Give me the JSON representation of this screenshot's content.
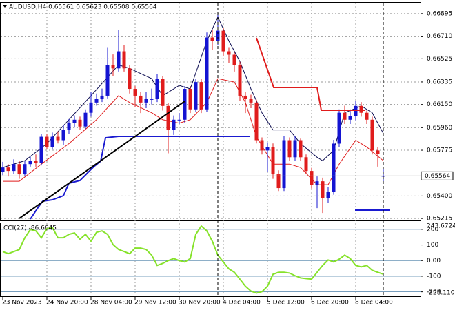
{
  "chart_data": [
    {
      "type": "candlestick",
      "title": "AUDUSD,H4  0.65561 0.65623 0.65508 0.65564",
      "categories": [
        "23 Nov 2023",
        null,
        null,
        null,
        null,
        null,
        null,
        null,
        "24 Nov 20:00",
        null,
        null,
        null,
        null,
        null,
        null,
        null,
        "28 Nov 04:00",
        null,
        null,
        null,
        null,
        null,
        null,
        null,
        "29 Nov 12:00",
        null,
        null,
        null,
        null,
        null,
        null,
        null,
        "30 Nov 20:00",
        null,
        null,
        null,
        null,
        null,
        null,
        null,
        "4 Dec 04:00",
        null,
        null,
        null,
        null,
        null,
        null,
        null,
        "5 Dec 12:00",
        null,
        null,
        null,
        null,
        null,
        null,
        null,
        "6 Dec 20:00",
        null,
        null,
        null,
        null,
        null,
        null,
        null,
        "8 Dec 04:00",
        null,
        null,
        null,
        null,
        null
      ],
      "open": [
        0.656,
        0.65633,
        0.65605,
        0.65661,
        0.65577,
        0.65661,
        0.65689,
        0.65672,
        0.65885,
        0.65801,
        0.65885,
        0.65857,
        0.65941,
        0.65997,
        0.66025,
        0.65969,
        0.66082,
        0.66166,
        0.66194,
        0.66222,
        0.66474,
        0.66446,
        0.66586,
        0.66446,
        0.66278,
        0.66222,
        0.66166,
        0.66194,
        0.66194,
        0.66362,
        0.66138,
        0.65941,
        0.66025,
        0.66025,
        0.66278,
        0.6611,
        0.66334,
        0.6611,
        0.66699,
        0.66671,
        0.66755,
        0.66586,
        0.66558,
        0.66474,
        0.66222,
        0.66194,
        0.66166,
        0.65857,
        0.65773,
        0.65801,
        0.65577,
        0.65464,
        0.65857,
        0.65717,
        0.65857,
        0.65717,
        0.65605,
        0.65492,
        0.6552,
        0.6538,
        0.65436,
        0.65829,
        0.66082,
        0.66025,
        0.66053,
        0.66138,
        0.66082,
        0.66025,
        0.65773,
        0.65561
      ],
      "high": [
        0.6568,
        0.6566,
        0.657,
        0.6569,
        0.6569,
        0.6572,
        0.6574,
        0.6591,
        0.6591,
        0.6592,
        0.6593,
        0.6598,
        0.6603,
        0.6606,
        0.6605,
        0.6611,
        0.6625,
        0.6624,
        0.6628,
        0.6662,
        0.6656,
        0.6676,
        0.6664,
        0.6647,
        0.663,
        0.6625,
        0.6625,
        0.6628,
        0.664,
        0.6638,
        0.6616,
        0.6606,
        0.6608,
        0.663,
        0.663,
        0.6636,
        0.6636,
        0.6674,
        0.6676,
        0.669,
        0.6678,
        0.6662,
        0.6658,
        0.665,
        0.6625,
        0.6623,
        0.6619,
        0.6588,
        0.6584,
        0.6583,
        0.6561,
        0.6589,
        0.6588,
        0.6589,
        0.6587,
        0.6574,
        0.6563,
        0.6556,
        0.6555,
        0.6547,
        0.6586,
        0.6611,
        0.6614,
        0.6611,
        0.6618,
        0.6617,
        0.661,
        0.6605,
        0.658,
        0.65623
      ],
      "low": [
        0.6557,
        0.6556,
        0.6558,
        0.6554,
        0.6556,
        0.6564,
        0.6564,
        0.6565,
        0.6578,
        0.6578,
        0.6583,
        0.6582,
        0.6591,
        0.6596,
        0.6594,
        0.6595,
        0.6605,
        0.6614,
        0.6617,
        0.662,
        0.6638,
        0.6642,
        0.6642,
        0.6624,
        0.6613,
        0.6608,
        0.6612,
        0.6615,
        0.6617,
        0.661,
        0.6575,
        0.659,
        0.6599,
        0.66,
        0.6608,
        0.6609,
        0.6608,
        0.6609,
        0.666,
        0.6664,
        0.6655,
        0.6649,
        0.6642,
        0.6618,
        0.6608,
        0.6612,
        0.6583,
        0.6574,
        0.656,
        0.6554,
        0.6544,
        0.6544,
        0.6569,
        0.6569,
        0.6569,
        0.6558,
        0.6546,
        0.653,
        0.6526,
        0.6534,
        0.6541,
        0.658,
        0.6599,
        0.6599,
        0.6602,
        0.6605,
        0.6599,
        0.6574,
        0.6564,
        0.65508
      ],
      "close": [
        0.65633,
        0.65605,
        0.65661,
        0.65577,
        0.65661,
        0.65689,
        0.65672,
        0.65885,
        0.65801,
        0.65885,
        0.65857,
        0.65941,
        0.65997,
        0.66025,
        0.65969,
        0.66082,
        0.66166,
        0.66194,
        0.66222,
        0.66474,
        0.66446,
        0.66586,
        0.66446,
        0.66278,
        0.66222,
        0.66166,
        0.66194,
        0.66194,
        0.66362,
        0.66138,
        0.65941,
        0.66025,
        0.66025,
        0.66278,
        0.6611,
        0.66334,
        0.6611,
        0.66699,
        0.66671,
        0.66755,
        0.66586,
        0.66558,
        0.66474,
        0.66222,
        0.66194,
        0.66166,
        0.65857,
        0.65773,
        0.65801,
        0.65577,
        0.65464,
        0.65857,
        0.65717,
        0.65857,
        0.65717,
        0.65605,
        0.65492,
        0.6552,
        0.6538,
        0.65436,
        0.65829,
        0.66082,
        0.66025,
        0.66053,
        0.66138,
        0.66082,
        0.66025,
        0.65773,
        0.65745,
        0.65564
      ],
      "colors": {
        "up": "#1414d2",
        "down": "#e01c1c"
      },
      "ylim": [
        0.6521,
        0.66979
      ],
      "yticks": [
        {
          "value": 0.66895,
          "label": "0.66895"
        },
        {
          "value": 0.6671,
          "label": "0.66710"
        },
        {
          "value": 0.66525,
          "label": "0.66525"
        },
        {
          "value": 0.66335,
          "label": "0.66335"
        },
        {
          "value": 0.6615,
          "label": "0.66150"
        },
        {
          "value": 0.6596,
          "label": "0.65960"
        },
        {
          "value": 0.65775,
          "label": "0.65775"
        },
        {
          "value": 0.654,
          "label": "0.65400"
        },
        {
          "value": 0.65215,
          "label": "0.65215"
        }
      ],
      "last_price": {
        "value": 0.65564,
        "label": "0.65564"
      },
      "grid": true,
      "overlays": [
        {
          "color": "#0a0a50",
          "x": [
            0,
            4,
            8,
            12,
            16,
            21,
            23,
            27,
            29,
            32,
            34,
            37,
            39,
            41,
            43,
            45,
            47,
            49,
            52,
            54,
            57,
            58,
            60,
            62,
            65,
            67,
            69
          ],
          "values": [
            0.65633,
            0.65689,
            0.65829,
            0.66025,
            0.66222,
            0.66474,
            0.66446,
            0.66362,
            0.66222,
            0.66306,
            0.66278,
            0.66671,
            0.66867,
            0.66671,
            0.66502,
            0.66278,
            0.66082,
            0.65941,
            0.65941,
            0.65829,
            0.65717,
            0.65689,
            0.65773,
            0.66082,
            0.66138,
            0.66082,
            0.65913
          ]
        },
        {
          "color": "#e01c1c",
          "x": [
            0,
            3,
            7,
            12,
            17,
            21,
            23,
            27,
            29,
            32,
            34,
            37,
            39,
            42,
            44,
            46,
            49,
            52,
            54,
            57,
            59,
            61,
            64,
            66,
            69
          ],
          "values": [
            0.6552,
            0.6552,
            0.65661,
            0.65829,
            0.66025,
            0.66222,
            0.66166,
            0.66082,
            0.66025,
            0.65997,
            0.66025,
            0.66166,
            0.66362,
            0.66334,
            0.66166,
            0.65885,
            0.65661,
            0.65661,
            0.65633,
            0.65492,
            0.65492,
            0.65661,
            0.65857,
            0.65801,
            0.65689
          ]
        }
      ]
    },
    {
      "type": "line",
      "title": "CCI(27) -86.6645",
      "color": "#86e22a",
      "values": [
        57.5,
        44.2,
        57.5,
        70.8,
        146,
        199,
        190,
        146,
        204,
        212,
        146,
        146,
        168,
        177,
        137,
        168,
        124,
        181,
        190,
        168,
        102,
        71,
        58,
        44,
        80,
        80,
        71,
        35,
        -31,
        -18,
        0,
        13,
        0,
        -9,
        13,
        168,
        221,
        190,
        124,
        35,
        -9,
        -53,
        -75,
        -119,
        -164,
        -195,
        -208,
        -199,
        -164,
        -88,
        -75,
        -75,
        -80,
        -97,
        -111,
        -115,
        -119,
        -75,
        -31,
        4,
        -9,
        9,
        35,
        13,
        -31,
        -40,
        -31,
        -62,
        -75,
        -86.6645
      ],
      "ylim": [
        -228.1103,
        243.6724
      ],
      "yticks": [
        200,
        100,
        {
          "value": 0,
          "label": "0.00"
        },
        -100,
        -200
      ],
      "grid": true
    }
  ]
}
